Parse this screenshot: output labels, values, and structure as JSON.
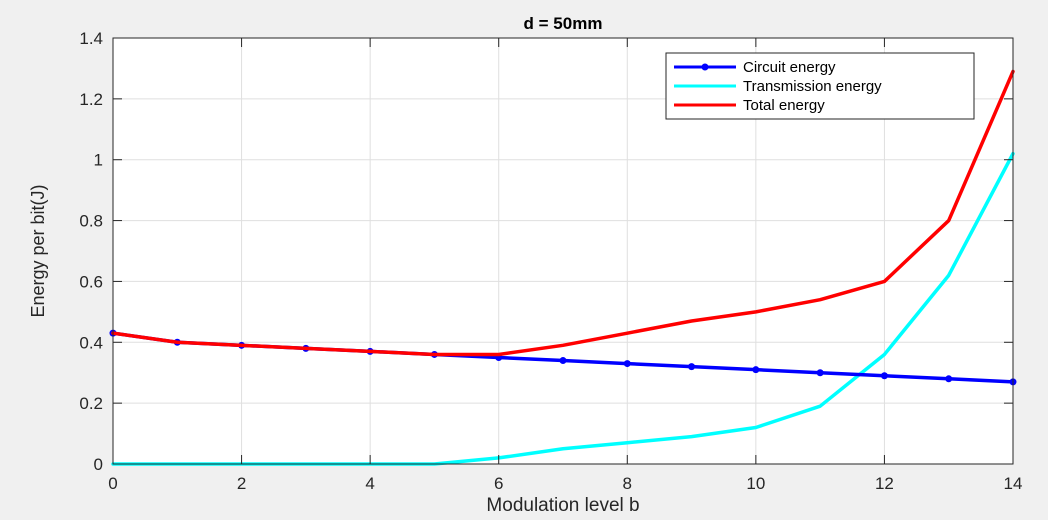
{
  "chart_data": {
    "type": "line",
    "title": "d = 50mm",
    "xlabel": "Modulation level b",
    "ylabel": "Energy per bit(J)",
    "xlim": [
      0,
      14
    ],
    "ylim": [
      0,
      1.4
    ],
    "xticks": [
      0,
      2,
      4,
      6,
      8,
      10,
      12,
      14
    ],
    "yticks": [
      0,
      0.2,
      0.4,
      0.6,
      0.8,
      1,
      1.2,
      1.4
    ],
    "xtick_labels": [
      "0",
      "2",
      "4",
      "6",
      "8",
      "10",
      "12",
      "14"
    ],
    "ytick_labels": [
      "0",
      "0.2",
      "0.4",
      "0.6",
      "0.8",
      "1",
      "1.2",
      "1.4"
    ],
    "grid": true,
    "legend_position": "top-right",
    "x": [
      0,
      1,
      2,
      3,
      4,
      5,
      6,
      7,
      8,
      9,
      10,
      11,
      12,
      13,
      14
    ],
    "series": [
      {
        "name": "Circuit energy",
        "color": "#0000ff",
        "markers": true,
        "values": [
          0.43,
          0.4,
          0.39,
          0.38,
          0.37,
          0.36,
          0.35,
          0.34,
          0.33,
          0.32,
          0.31,
          0.3,
          0.29,
          0.28,
          0.27
        ]
      },
      {
        "name": "Transmission energy",
        "color": "#00ffff",
        "markers": false,
        "values": [
          0,
          0,
          0,
          0,
          0,
          0,
          0.02,
          0.05,
          0.07,
          0.09,
          0.12,
          0.19,
          0.36,
          0.62,
          1.02
        ]
      },
      {
        "name": "Total energy",
        "color": "#ff0000",
        "markers": false,
        "values": [
          0.43,
          0.4,
          0.39,
          0.38,
          0.37,
          0.36,
          0.36,
          0.39,
          0.43,
          0.47,
          0.5,
          0.54,
          0.6,
          0.8,
          1.29
        ]
      }
    ]
  }
}
